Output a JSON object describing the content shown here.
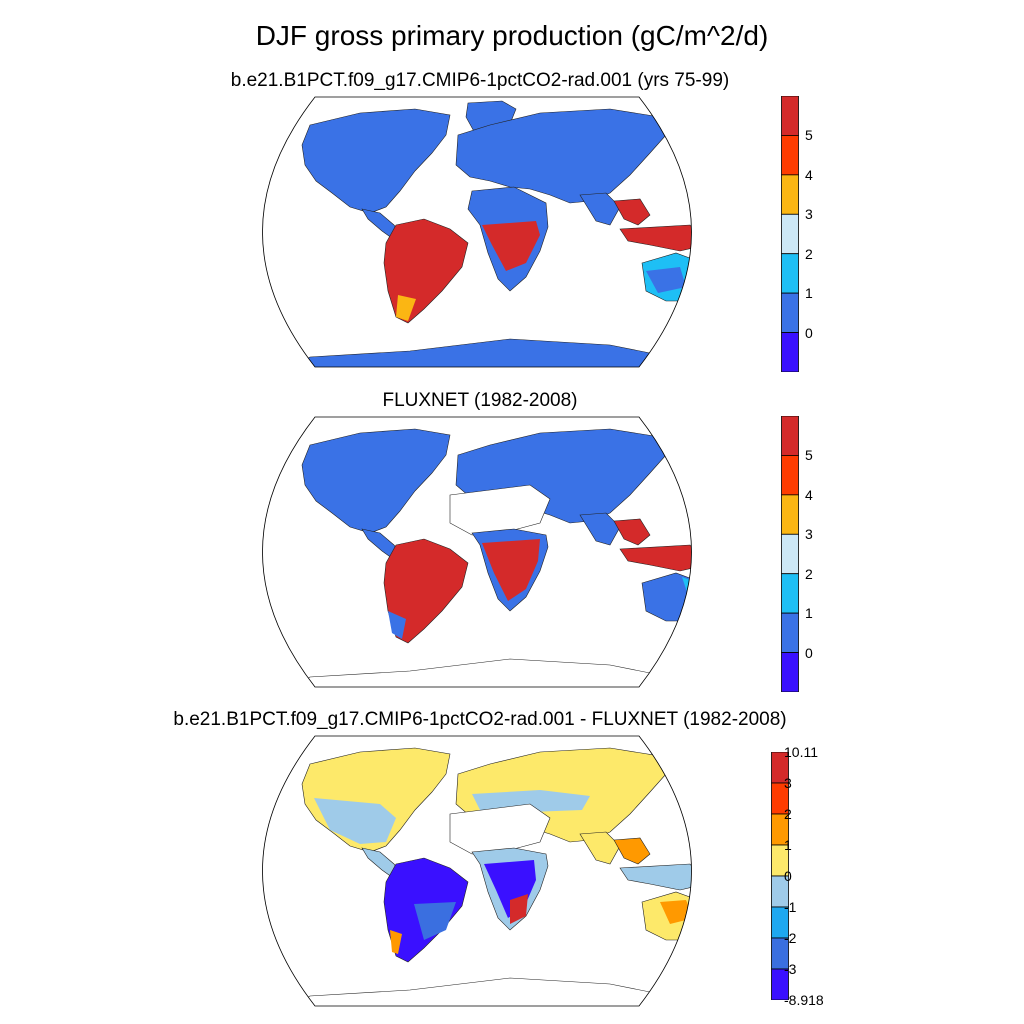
{
  "figure": {
    "title": "DJF gross primary production (gC/m^2/d)"
  },
  "panels": [
    {
      "title": "b.e21.B1PCT.f09_g17.CMIP6-1pctCO2-rad.001 (yrs 75-99)",
      "colorbar": {
        "labels": [
          "5",
          "4",
          "3",
          "2",
          "1",
          "0"
        ],
        "colors": [
          "#d42a2a",
          "#ff3c00",
          "#fbb613",
          "#cde8f6",
          "#1ebff5",
          "#3a72e6",
          "#3a10ff"
        ]
      }
    },
    {
      "title": "FLUXNET (1982-2008)",
      "colorbar": {
        "labels": [
          "5",
          "4",
          "3",
          "2",
          "1",
          "0"
        ],
        "colors": [
          "#d42a2a",
          "#ff3c00",
          "#fbb613",
          "#cde8f6",
          "#1ebff5",
          "#3a72e6",
          "#3a10ff"
        ]
      }
    },
    {
      "title": "b.e21.B1PCT.f09_g17.CMIP6-1pctCO2-rad.001 - FLUXNET (1982-2008)",
      "colorbar": {
        "labels": [
          "10.11",
          "3",
          "2",
          "1",
          "0",
          "-1",
          "-2",
          "-3",
          "-8.918"
        ],
        "colors": [
          "#d42a2a",
          "#ff3c00",
          "#ff9900",
          "#fde96a",
          "#9fcbe9",
          "#1ea8f0",
          "#3a6fe0",
          "#3a10ff"
        ]
      }
    }
  ]
}
